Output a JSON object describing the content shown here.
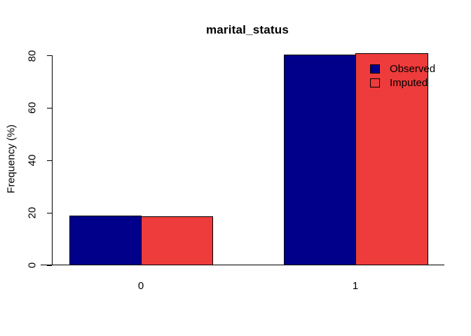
{
  "chart_data": {
    "type": "bar",
    "title": "marital_status",
    "xlabel": "",
    "ylabel": "Frequency (%)",
    "categories": [
      "0",
      "1"
    ],
    "series": [
      {
        "name": "Observed",
        "color": "#00008B",
        "values": [
          19,
          80.5
        ]
      },
      {
        "name": "Imputed",
        "color": "#EE3B3B",
        "values": [
          18.6,
          81
        ]
      }
    ],
    "yticks": [
      0,
      20,
      40,
      60,
      80
    ],
    "ylim": [
      0,
      83
    ],
    "grid": false,
    "legend_position": "top-right",
    "axis_color": "#000000",
    "background_color": "#FFFFFF"
  }
}
